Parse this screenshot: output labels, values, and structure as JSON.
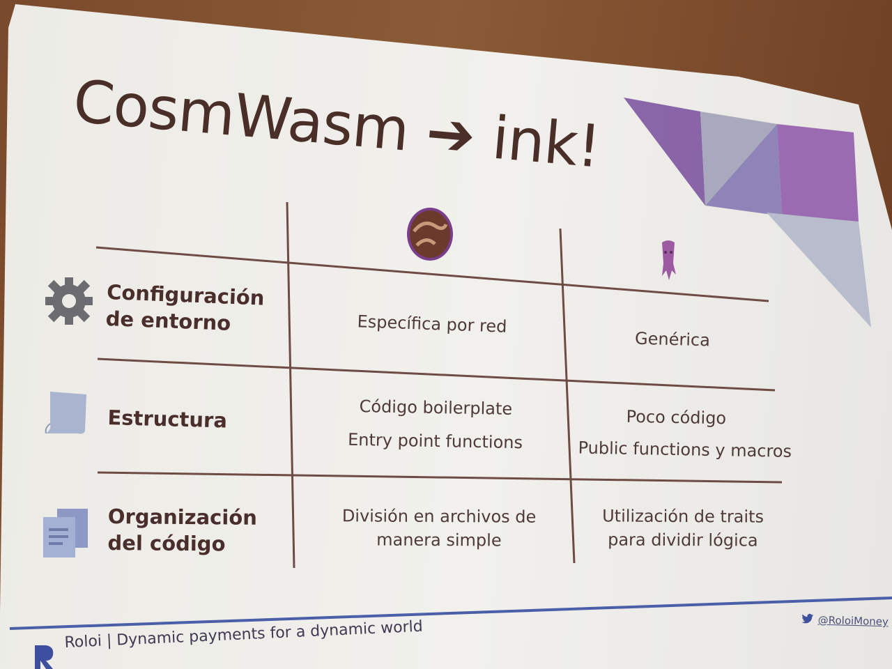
{
  "title": "CosmWasm ➔ ink!",
  "rows": [
    {
      "icon": "gear-icon",
      "label_line1": "Configuración",
      "label_line2": "de entorno",
      "cosmwasm": [
        "Específica por red"
      ],
      "ink": [
        "Genérica"
      ]
    },
    {
      "icon": "document-icon",
      "label_line1": "Estructura",
      "label_line2": "",
      "cosmwasm": [
        "Código boilerplate",
        "Entry point functions"
      ],
      "ink": [
        "Poco código",
        "Public functions y macros"
      ]
    },
    {
      "icon": "files-icon",
      "label_line1": "Organización",
      "label_line2": "del código",
      "cosmwasm": [
        "División en archivos de",
        "manera simple"
      ],
      "ink": [
        "Utilización de traits",
        "para dividir lógica"
      ]
    }
  ],
  "columns": {
    "cosmwasm_logo": "cosmwasm-logo-icon",
    "ink_logo": "ink-squid-logo-icon"
  },
  "footer": {
    "brand_mark": "roloi-logo-icon",
    "tagline": "Roloi | Dynamic payments for a dynamic world",
    "twitter_icon": "twitter-icon",
    "handle": "@RoloiMoney"
  },
  "colors": {
    "accent_purple": "#8a5ca8",
    "text_brown": "#4a2f28",
    "footer_blue": "#4a5fa8"
  }
}
